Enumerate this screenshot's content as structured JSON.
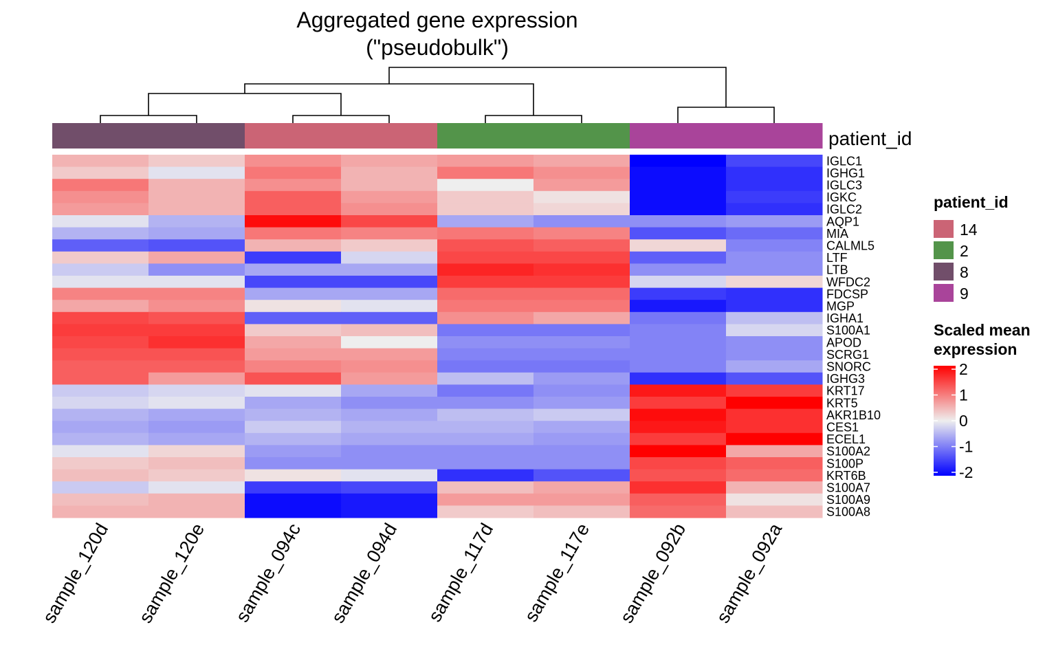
{
  "chart_data": {
    "type": "heatmap",
    "title": "Aggregated gene expression",
    "subtitle": "(\"pseudobulk\")",
    "columns": [
      "sample_120d",
      "sample_120e",
      "sample_094c",
      "sample_094d",
      "sample_117d",
      "sample_117e",
      "sample_092b",
      "sample_092a"
    ],
    "rows": [
      "IGLC1",
      "IGHG1",
      "IGLC3",
      "IGKC",
      "IGLC2",
      "AQP1",
      "MIA",
      "CALML5",
      "LTF",
      "LTB",
      "WFDC2",
      "FDCSP",
      "MGP",
      "IGHA1",
      "S100A1",
      "APOD",
      "SCRG1",
      "SNORC",
      "IGHG3",
      "KRT17",
      "KRT5",
      "AKR1B10",
      "CES1",
      "ECEL1",
      "S100A2",
      "S100P",
      "KRT6B",
      "S100A7",
      "S100A9",
      "S100A8"
    ],
    "values": [
      [
        0.5,
        0.3,
        0.8,
        0.6,
        0.7,
        0.6,
        -2.2,
        -1.4
      ],
      [
        0.3,
        -0.1,
        1.0,
        0.5,
        1.0,
        0.8,
        -1.9,
        -1.6
      ],
      [
        1.0,
        0.5,
        0.8,
        0.5,
        0.0,
        0.7,
        -1.9,
        -1.6
      ],
      [
        0.8,
        0.5,
        1.2,
        0.7,
        0.3,
        0.1,
        -1.9,
        -1.5
      ],
      [
        0.7,
        0.5,
        1.2,
        0.8,
        0.3,
        0.2,
        -1.9,
        -1.6
      ],
      [
        -0.1,
        -0.5,
        1.9,
        1.4,
        -0.6,
        -0.8,
        -0.8,
        -0.7
      ],
      [
        -0.5,
        -0.6,
        1.0,
        0.9,
        1.0,
        0.9,
        -1.3,
        -1.1
      ],
      [
        -1.2,
        -1.3,
        0.5,
        0.3,
        1.3,
        1.2,
        0.2,
        -0.9
      ],
      [
        0.3,
        0.6,
        -1.5,
        -0.2,
        1.4,
        1.4,
        -1.2,
        -0.8
      ],
      [
        -0.3,
        -0.8,
        -0.6,
        -0.6,
        1.7,
        1.6,
        -0.8,
        -0.8
      ],
      [
        -0.1,
        -0.1,
        -1.4,
        -1.4,
        1.5,
        1.5,
        -0.2,
        0.2
      ],
      [
        0.9,
        0.9,
        -0.6,
        -0.6,
        1.1,
        1.1,
        -1.5,
        -1.6
      ],
      [
        0.6,
        0.8,
        0.1,
        -0.1,
        1.0,
        1.0,
        -1.8,
        -1.6
      ],
      [
        1.4,
        1.3,
        -1.2,
        -1.2,
        0.8,
        0.6,
        -1.0,
        -0.4
      ],
      [
        1.5,
        1.5,
        0.3,
        0.4,
        -1.0,
        -1.0,
        -0.9,
        -0.2
      ],
      [
        1.4,
        1.6,
        0.6,
        0.0,
        -0.8,
        -0.8,
        -0.9,
        -0.8
      ],
      [
        1.3,
        1.3,
        0.7,
        0.7,
        -0.9,
        -0.9,
        -0.9,
        -0.8
      ],
      [
        1.2,
        1.2,
        0.9,
        0.8,
        -1.0,
        -1.0,
        -0.9,
        -0.6
      ],
      [
        1.2,
        0.7,
        1.3,
        0.7,
        -0.4,
        -0.7,
        -1.6,
        -1.3
      ],
      [
        -0.3,
        -0.2,
        -0.1,
        -0.6,
        -1.0,
        -0.8,
        1.8,
        1.5
      ],
      [
        -0.2,
        -0.1,
        -0.6,
        -0.8,
        -0.8,
        -0.7,
        1.5,
        2.1
      ],
      [
        -0.5,
        -0.6,
        -0.5,
        -0.6,
        -0.4,
        -0.3,
        1.9,
        1.6
      ],
      [
        -0.6,
        -0.7,
        -0.3,
        -0.5,
        -0.5,
        -0.6,
        1.8,
        1.6
      ],
      [
        -0.5,
        -0.6,
        -0.5,
        -0.6,
        -0.6,
        -0.7,
        1.5,
        2.0
      ],
      [
        -0.1,
        0.2,
        -0.7,
        -0.8,
        -0.8,
        -0.8,
        2.1,
        0.6
      ],
      [
        0.3,
        0.4,
        -0.8,
        -0.8,
        -0.8,
        -0.8,
        1.4,
        1.2
      ],
      [
        0.4,
        0.3,
        0.1,
        -0.1,
        -1.6,
        -1.3,
        1.3,
        1.1
      ],
      [
        -0.3,
        -0.1,
        -1.5,
        -1.4,
        0.4,
        0.6,
        1.6,
        0.5
      ],
      [
        0.4,
        0.5,
        -1.9,
        -1.8,
        0.7,
        0.7,
        1.2,
        0.1
      ],
      [
        0.5,
        0.5,
        -1.9,
        -1.8,
        0.3,
        0.4,
        1.1,
        0.4
      ]
    ],
    "color_scale": {
      "min": -2,
      "max": 2,
      "low": "#0000ff",
      "mid": "#eeeeee",
      "high": "#ff0000"
    },
    "column_annotation": {
      "name": "patient_id",
      "values": [
        "8",
        "8",
        "14",
        "14",
        "2",
        "2",
        "9",
        "9"
      ],
      "colors": {
        "14": "#cb6475",
        "2": "#53944a",
        "8": "#714e6a",
        "9": "#a9449a"
      }
    },
    "legend": {
      "placement": "right",
      "patient_title": "patient_id",
      "patient_levels": [
        "14",
        "2",
        "8",
        "9"
      ],
      "scale_title_line1": "Scaled mean",
      "scale_title_line2": "expression",
      "scale_ticks": [
        "2",
        "1",
        "0",
        "-1",
        "-2"
      ]
    },
    "column_dendrogram": [
      [
        0,
        1
      ],
      [
        2,
        3
      ],
      [
        4,
        5
      ],
      [
        6,
        7
      ],
      [
        8,
        9
      ],
      [
        12,
        10
      ],
      [
        13,
        11
      ]
    ]
  }
}
